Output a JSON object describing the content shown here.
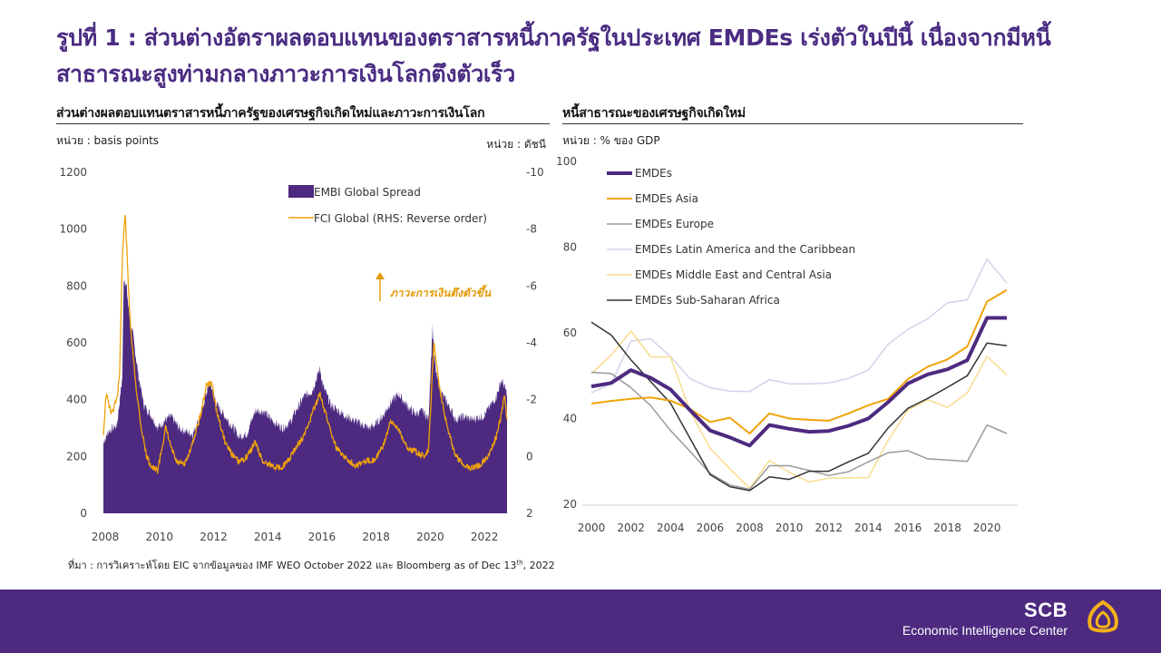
{
  "page": {
    "title": "รูปที่ 1 : ส่วนต่างอัตราผลตอบแทนของตราสารหนี้ภาครัฐในประเทศ EMDEs เร่งตัวในปีนี้ เนื่องจากมีหนี้สาธารณะสูงท่ามกลางภาวะการเงินโลกตึงตัวเร็ว",
    "source_prefix": "ที่มา : การวิเคราะห์โดย EIC จากข้อมูลของ IMF WEO October 2022 และ Bloomberg as of Dec 13",
    "source_sup": "th",
    "source_suffix": ", 2022",
    "brand": {
      "name": "SCB",
      "tagline": "Economic Intelligence Center"
    },
    "colors": {
      "brand_purple": "#4d2a80",
      "accent_orange": "#f0a30a"
    }
  },
  "left_chart": {
    "subtitle": "ส่วนต่างผลตอบแทนตราสารหนี้ภาครัฐของเศรษฐกิจเกิดใหม่และภาวะการเงินโลก",
    "unit_left": "หน่วย : basis points",
    "unit_right": "หน่วย : ดัชนี",
    "annotation": "ภาวะการเงินตึงตัวขึ้น"
  },
  "right_chart": {
    "subtitle": "หนี้สาธารณะของเศรษฐกิจเกิดใหม่",
    "unit": "หน่วย : % ของ GDP"
  },
  "chart_data": [
    {
      "type": "area",
      "title": "ส่วนต่างผลตอบแทนตราสารหนี้ภาครัฐของเศรษฐกิจเกิดใหม่และภาวะการเงินโลก",
      "x_ticks": [
        "2008",
        "2010",
        "2012",
        "2014",
        "2016",
        "2018",
        "2020",
        "2022"
      ],
      "xlim": [
        2008,
        2023
      ],
      "ylim": [
        0,
        1200
      ],
      "y_ticks": [
        "0",
        "200",
        "400",
        "600",
        "800",
        "1000",
        "1200"
      ],
      "y2_ticks": [
        "2",
        "0",
        "-2",
        "-4",
        "-6",
        "-8",
        "-10"
      ],
      "y2lim": [
        2,
        -10
      ],
      "y2_reversed": true,
      "legend_position": "top-center",
      "series": [
        {
          "name": "EMBI Global Spread",
          "type": "area",
          "axis": "left",
          "color": "#4d2a80",
          "x": [
            2008.0,
            2008.2,
            2008.5,
            2008.7,
            2008.75,
            2008.85,
            2008.95,
            2009.1,
            2009.3,
            2009.5,
            2009.8,
            2010.0,
            2010.3,
            2010.5,
            2010.8,
            2011.0,
            2011.3,
            2011.6,
            2011.9,
            2012.0,
            2012.2,
            2012.5,
            2012.8,
            2013.0,
            2013.3,
            2013.6,
            2013.9,
            2014.2,
            2014.6,
            2014.9,
            2015.1,
            2015.4,
            2015.7,
            2016.0,
            2016.1,
            2016.4,
            2016.7,
            2017.0,
            2017.4,
            2017.8,
            2018.0,
            2018.3,
            2018.6,
            2018.9,
            2019.2,
            2019.5,
            2019.8,
            2020.0,
            2020.15,
            2020.2,
            2020.3,
            2020.5,
            2020.8,
            2021.0,
            2021.3,
            2021.6,
            2021.9,
            2022.0,
            2022.3,
            2022.5,
            2022.7,
            2022.9
          ],
          "values": [
            250,
            290,
            310,
            480,
            830,
            800,
            700,
            620,
            480,
            380,
            340,
            300,
            330,
            340,
            300,
            290,
            280,
            350,
            460,
            440,
            380,
            340,
            300,
            270,
            280,
            360,
            360,
            330,
            300,
            320,
            360,
            410,
            430,
            510,
            450,
            380,
            360,
            340,
            320,
            300,
            310,
            340,
            390,
            420,
            380,
            350,
            360,
            330,
            660,
            560,
            480,
            420,
            370,
            330,
            340,
            330,
            340,
            340,
            380,
            410,
            470,
            420
          ]
        },
        {
          "name": "FCI Global (RHS: Reverse order)",
          "type": "line",
          "axis": "right",
          "color": "#f0a30a",
          "x": [
            2008.0,
            2008.1,
            2008.3,
            2008.5,
            2008.6,
            2008.7,
            2008.8,
            2008.9,
            2009.0,
            2009.2,
            2009.4,
            2009.6,
            2009.8,
            2010.0,
            2010.3,
            2010.5,
            2010.7,
            2011.0,
            2011.3,
            2011.6,
            2011.8,
            2012.0,
            2012.2,
            2012.5,
            2012.8,
            2013.0,
            2013.3,
            2013.6,
            2013.9,
            2014.2,
            2014.5,
            2014.8,
            2015.1,
            2015.4,
            2015.7,
            2016.0,
            2016.3,
            2016.6,
            2017.0,
            2017.3,
            2017.6,
            2018.0,
            2018.3,
            2018.6,
            2018.9,
            2019.2,
            2019.5,
            2019.8,
            2020.0,
            2020.2,
            2020.4,
            2020.7,
            2021.0,
            2021.3,
            2021.6,
            2021.9,
            2022.2,
            2022.5,
            2022.7,
            2022.8,
            2022.9
          ],
          "values": [
            -0.8,
            -2.2,
            -1.5,
            -2.0,
            -3.0,
            -7.0,
            -8.6,
            -6.5,
            -4.5,
            -2.5,
            -1.0,
            0.0,
            0.4,
            0.5,
            -1.0,
            -0.3,
            0.2,
            0.3,
            -0.5,
            -1.5,
            -2.5,
            -2.6,
            -1.5,
            -0.5,
            0.0,
            0.2,
            0.0,
            -0.5,
            0.2,
            0.3,
            0.4,
            0.2,
            -0.3,
            -0.7,
            -1.5,
            -2.2,
            -1.2,
            -0.3,
            0.1,
            0.3,
            0.2,
            0.1,
            -0.3,
            -1.2,
            -1.0,
            -0.3,
            -0.2,
            0.0,
            -0.2,
            -4.0,
            -2.5,
            -1.0,
            0.0,
            0.3,
            0.4,
            0.3,
            0.0,
            -0.7,
            -1.5,
            -2.2,
            -1.3
          ]
        }
      ]
    },
    {
      "type": "line",
      "title": "หนี้สาธารณะของเศรษฐกิจเกิดใหม่",
      "x_ticks": [
        "2000",
        "2002",
        "2004",
        "2006",
        "2008",
        "2010",
        "2012",
        "2014",
        "2016",
        "2018",
        "2020"
      ],
      "xlim": [
        2000,
        2021
      ],
      "ylim": [
        20,
        100
      ],
      "y_ticks": [
        "20",
        "40",
        "60",
        "80",
        "100"
      ],
      "legend_position": "top-left",
      "x": [
        2000,
        2001,
        2002,
        2003,
        2004,
        2005,
        2006,
        2007,
        2008,
        2009,
        2010,
        2011,
        2012,
        2013,
        2014,
        2015,
        2016,
        2017,
        2018,
        2019,
        2020,
        2021
      ],
      "series": [
        {
          "name": "EMDEs",
          "color": "#4d2a80",
          "width": 4,
          "values": [
            47.5,
            48.3,
            51.3,
            49.5,
            46.8,
            41.9,
            37.2,
            35.6,
            33.7,
            38.5,
            37.6,
            36.9,
            37.1,
            38.3,
            40.0,
            43.8,
            48.2,
            50.3,
            51.5,
            53.6,
            63.5,
            63.5
          ]
        },
        {
          "name": "EMDEs Asia",
          "color": "#f0a30a",
          "width": 2,
          "values": [
            43.5,
            44.1,
            44.6,
            44.9,
            44.2,
            42.2,
            39.2,
            40.2,
            36.5,
            41.2,
            40.0,
            39.7,
            39.5,
            41.2,
            43.1,
            44.6,
            49.2,
            52.1,
            53.8,
            56.8,
            67.3,
            70.0
          ]
        },
        {
          "name": "EMDEs Europe",
          "color": "#9a9a9a",
          "width": 1.5,
          "values": [
            50.8,
            50.5,
            47.2,
            43.0,
            37.2,
            32.3,
            27.2,
            24.5,
            23.5,
            29.0,
            29.0,
            27.9,
            26.7,
            27.6,
            29.9,
            32.0,
            32.5,
            30.6,
            30.3,
            30.0,
            38.5,
            36.5
          ]
        },
        {
          "name": "EMDEs Latin America and the Caribbean",
          "color": "#d6d0ea",
          "width": 1.5,
          "values": [
            46.0,
            48.1,
            58.1,
            58.6,
            54.5,
            49.3,
            47.2,
            46.4,
            46.3,
            49.1,
            48.1,
            48.1,
            48.3,
            49.4,
            51.3,
            57.3,
            60.8,
            63.3,
            67.0,
            67.7,
            77.2,
            71.6
          ]
        },
        {
          "name": "EMDEs Middle East and Central Asia",
          "color": "#f8dc8e",
          "width": 1.5,
          "values": [
            50.5,
            54.8,
            60.4,
            54.4,
            54.4,
            41.7,
            33.0,
            28.3,
            23.7,
            30.2,
            27.5,
            25.2,
            26.1,
            26.2,
            26.2,
            34.9,
            42.0,
            44.4,
            42.6,
            46.0,
            54.5,
            50.2
          ]
        },
        {
          "name": "EMDEs Sub-Saharan Africa",
          "color": "#333333",
          "width": 1.5,
          "values": [
            62.5,
            59.5,
            53.7,
            48.6,
            43.6,
            35.3,
            26.9,
            24.1,
            23.2,
            26.4,
            25.8,
            27.7,
            27.7,
            29.9,
            31.9,
            37.8,
            42.4,
            44.7,
            47.3,
            50.0,
            57.6,
            57.0
          ]
        }
      ]
    }
  ]
}
